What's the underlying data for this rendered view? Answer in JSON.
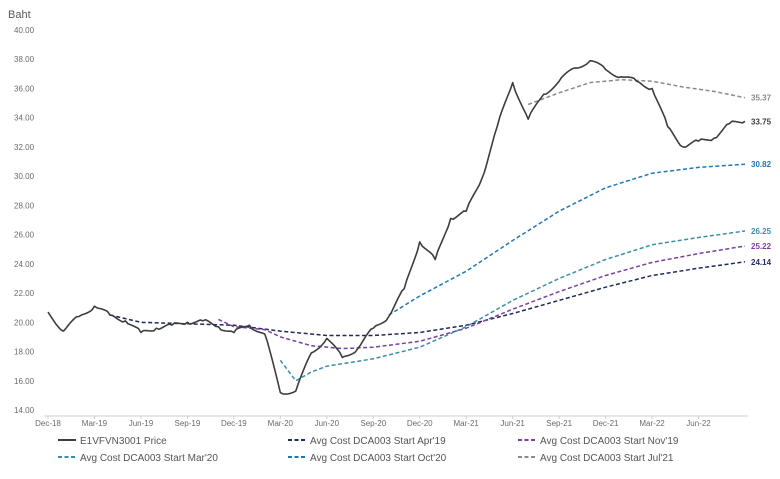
{
  "chart_data": {
    "type": "line",
    "ylabel": "Baht",
    "xlabel": "",
    "title": "",
    "ylim": [
      14,
      40
    ],
    "yticks": [
      "14.00",
      "16.00",
      "18.00",
      "20.00",
      "22.00",
      "24.00",
      "26.00",
      "28.00",
      "30.00",
      "32.00",
      "34.00",
      "36.00",
      "38.00",
      "40.00"
    ],
    "xticks": [
      "Dec-18",
      "Mar-19",
      "Jun-19",
      "Sep-19",
      "Dec-19",
      "Mar-20",
      "Jun-20",
      "Sep-20",
      "Dec-20",
      "Mar-21",
      "Jun-21",
      "Sep-21",
      "Dec-21",
      "Mar-22",
      "Jun-22"
    ],
    "grid": false,
    "legend_position": "bottom",
    "series": [
      {
        "name": "E1VFVN3001 Price",
        "color": "#3d3d3d",
        "dash": "solid",
        "end_label": "33.75",
        "points": [
          [
            "Dec-18",
            20.7
          ],
          [
            "Jan-19",
            19.4
          ],
          [
            "Feb-19",
            20.4
          ],
          [
            "Mar-19",
            21.1
          ],
          [
            "Apr-19",
            20.5
          ],
          [
            "May-19",
            20.1
          ],
          [
            "Jun-19",
            19.3
          ],
          [
            "Jul-19",
            19.6
          ],
          [
            "Aug-19",
            19.8
          ],
          [
            "Sep-19",
            20.0
          ],
          [
            "Oct-19",
            20.1
          ],
          [
            "Nov-19",
            19.7
          ],
          [
            "Dec-19",
            19.3
          ],
          [
            "Jan-20",
            19.8
          ],
          [
            "Feb-20",
            19.2
          ],
          [
            "Mar-20",
            15.2
          ],
          [
            "Apr-20",
            15.3
          ],
          [
            "May-20",
            17.9
          ],
          [
            "Jun-20",
            18.9
          ],
          [
            "Jul-20",
            17.6
          ],
          [
            "Aug-20",
            18.2
          ],
          [
            "Sep-20",
            19.6
          ],
          [
            "Oct-20",
            20.4
          ],
          [
            "Nov-20",
            22.3
          ],
          [
            "Dec-20",
            25.5
          ],
          [
            "Jan-21",
            24.3
          ],
          [
            "Feb-21",
            27.1
          ],
          [
            "Mar-21",
            27.6
          ],
          [
            "Apr-21",
            29.8
          ],
          [
            "May-21",
            33.4
          ],
          [
            "Jun-21",
            36.4
          ],
          [
            "Jul-21",
            33.9
          ],
          [
            "Aug-21",
            35.6
          ],
          [
            "Sep-21",
            36.5
          ],
          [
            "Oct-21",
            37.4
          ],
          [
            "Nov-21",
            37.9
          ],
          [
            "Dec-21",
            37.3
          ],
          [
            "Jan-22",
            36.8
          ],
          [
            "Feb-22",
            36.5
          ],
          [
            "Mar-22",
            36.0
          ],
          [
            "Apr-22",
            33.4
          ],
          [
            "May-22",
            32.0
          ],
          [
            "Jun-22",
            32.4
          ],
          [
            "Jul-22",
            32.6
          ],
          [
            "Aug-22",
            33.6
          ],
          [
            "Sep-22",
            33.75
          ]
        ]
      },
      {
        "name": "Avg Cost DCA003 Start Apr'19",
        "color": "#1f2a5c",
        "dash": "dashed",
        "end_label": "24.14",
        "points": [
          [
            "Apr-19",
            20.5
          ],
          [
            "Jun-19",
            20.0
          ],
          [
            "Sep-19",
            19.9
          ],
          [
            "Dec-19",
            19.8
          ],
          [
            "Mar-20",
            19.4
          ],
          [
            "Jun-20",
            19.1
          ],
          [
            "Sep-20",
            19.1
          ],
          [
            "Dec-20",
            19.3
          ],
          [
            "Mar-21",
            19.8
          ],
          [
            "Jun-21",
            20.6
          ],
          [
            "Sep-21",
            21.5
          ],
          [
            "Dec-21",
            22.4
          ],
          [
            "Mar-22",
            23.2
          ],
          [
            "Jun-22",
            23.7
          ],
          [
            "Sep-22",
            24.14
          ]
        ]
      },
      {
        "name": "Avg Cost DCA003 Start Nov'19",
        "color": "#7b3fa0",
        "dash": "dashed",
        "end_label": "25.22",
        "points": [
          [
            "Nov-19",
            20.2
          ],
          [
            "Dec-19",
            19.7
          ],
          [
            "Feb-20",
            19.5
          ],
          [
            "Mar-20",
            19.0
          ],
          [
            "May-20",
            18.4
          ],
          [
            "Jul-20",
            18.2
          ],
          [
            "Sep-20",
            18.3
          ],
          [
            "Dec-20",
            18.7
          ],
          [
            "Mar-21",
            19.6
          ],
          [
            "Jun-21",
            20.9
          ],
          [
            "Sep-21",
            22.1
          ],
          [
            "Dec-21",
            23.2
          ],
          [
            "Mar-22",
            24.1
          ],
          [
            "Jun-22",
            24.7
          ],
          [
            "Sep-22",
            25.22
          ]
        ]
      },
      {
        "name": "Avg Cost DCA003 Start Mar'20",
        "color": "#3a8ea8",
        "dash": "dashed",
        "end_label": "26.25",
        "points": [
          [
            "Mar-20",
            17.4
          ],
          [
            "Apr-20",
            16.0
          ],
          [
            "May-20",
            16.6
          ],
          [
            "Jun-20",
            17.0
          ],
          [
            "Sep-20",
            17.5
          ],
          [
            "Dec-20",
            18.3
          ],
          [
            "Mar-21",
            19.7
          ],
          [
            "Jun-21",
            21.5
          ],
          [
            "Sep-21",
            23.0
          ],
          [
            "Dec-21",
            24.3
          ],
          [
            "Mar-22",
            25.3
          ],
          [
            "Jun-22",
            25.8
          ],
          [
            "Sep-22",
            26.25
          ]
        ]
      },
      {
        "name": "Avg Cost DCA003 Start Oct'20",
        "color": "#1f78b4",
        "dash": "dashed",
        "end_label": "30.82",
        "points": [
          [
            "Oct-20",
            20.5
          ],
          [
            "Dec-20",
            21.8
          ],
          [
            "Mar-21",
            23.5
          ],
          [
            "Jun-21",
            25.6
          ],
          [
            "Sep-21",
            27.6
          ],
          [
            "Dec-21",
            29.2
          ],
          [
            "Mar-22",
            30.2
          ],
          [
            "Jun-22",
            30.6
          ],
          [
            "Sep-22",
            30.82
          ]
        ]
      },
      {
        "name": "Avg Cost DCA003 Start Jul'21",
        "color": "#8a8a8a",
        "dash": "dashed",
        "end_label": "35.37",
        "points": [
          [
            "Jul-21",
            34.9
          ],
          [
            "Sep-21",
            35.7
          ],
          [
            "Nov-21",
            36.4
          ],
          [
            "Jan-22",
            36.6
          ],
          [
            "Mar-22",
            36.5
          ],
          [
            "May-22",
            36.1
          ],
          [
            "Jul-22",
            35.8
          ],
          [
            "Sep-22",
            35.37
          ]
        ]
      }
    ]
  }
}
